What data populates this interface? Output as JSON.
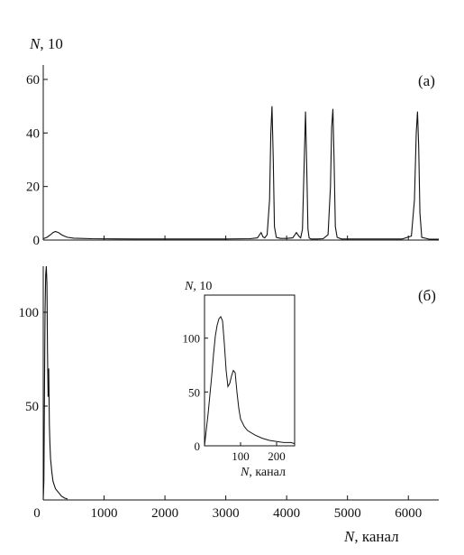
{
  "colors": {
    "ink": "#111111",
    "background": "#ffffff"
  },
  "chart_data": [
    {
      "panel": "a",
      "type": "line",
      "tag": "(а)",
      "ylabel_var": "N",
      "ylabel_rest": ", 10",
      "xlim": [
        0,
        6500
      ],
      "ylim": [
        0,
        65
      ],
      "yticks": [
        0,
        20,
        40,
        60
      ],
      "xticks": [
        0,
        1000,
        2000,
        3000,
        4000,
        5000,
        6000
      ],
      "grid": false,
      "x": [
        0,
        60,
        120,
        160,
        200,
        250,
        300,
        350,
        400,
        500,
        800,
        1500,
        2500,
        3000,
        3400,
        3520,
        3580,
        3610,
        3640,
        3680,
        3720,
        3740,
        3760,
        3780,
        3800,
        3830,
        3900,
        4000,
        4100,
        4160,
        4200,
        4230,
        4260,
        4290,
        4310,
        4330,
        4350,
        4370,
        4400,
        4500,
        4600,
        4680,
        4720,
        4740,
        4760,
        4780,
        4800,
        4830,
        4900,
        5200,
        5600,
        5900,
        6050,
        6100,
        6130,
        6150,
        6170,
        6190,
        6220,
        6350,
        6500
      ],
      "values": [
        0.5,
        1,
        2,
        2.8,
        3.2,
        2.8,
        2.0,
        1.4,
        1.0,
        0.7,
        0.5,
        0.4,
        0.4,
        0.4,
        0.5,
        0.8,
        2.8,
        1.2,
        0.8,
        2,
        15,
        40,
        50,
        30,
        5,
        1,
        0.6,
        0.6,
        0.8,
        2.8,
        1.5,
        0.8,
        4,
        30,
        48,
        28,
        4,
        0.8,
        0.4,
        0.4,
        0.5,
        2,
        20,
        42,
        49,
        30,
        5,
        1,
        0.4,
        0.4,
        0.4,
        0.4,
        1.5,
        15,
        40,
        48,
        35,
        10,
        1,
        0.3,
        0.3
      ]
    },
    {
      "panel": "b",
      "type": "line",
      "tag": "(б)",
      "xlabel_var": "N",
      "xlabel_rest": ", канал",
      "xlim": [
        0,
        6500
      ],
      "ylim": [
        0,
        125
      ],
      "yticks": [
        50,
        100
      ],
      "xticks": [
        0,
        1000,
        2000,
        3000,
        4000,
        5000,
        6000
      ],
      "grid": false,
      "x": [
        0,
        10,
        20,
        30,
        40,
        50,
        60,
        70,
        80,
        90,
        100,
        110,
        120,
        140,
        160,
        200,
        250,
        300,
        350,
        400
      ],
      "values": [
        0,
        10,
        60,
        100,
        120,
        125,
        115,
        80,
        55,
        70,
        40,
        30,
        22,
        15,
        10,
        6,
        4,
        2,
        1,
        0.5
      ]
    },
    {
      "panel": "b-inset",
      "type": "line",
      "ylabel_var": "N",
      "ylabel_rest": ", 10",
      "xlabel_var": "N",
      "xlabel_rest": ", канал",
      "xlim": [
        0,
        250
      ],
      "ylim": [
        0,
        140
      ],
      "yticks": [
        0,
        50,
        100
      ],
      "xticks": [
        100,
        200
      ],
      "grid": false,
      "x": [
        0,
        10,
        20,
        25,
        30,
        35,
        40,
        45,
        50,
        55,
        60,
        65,
        70,
        75,
        80,
        85,
        90,
        95,
        100,
        110,
        120,
        140,
        160,
        180,
        200,
        220,
        240,
        250
      ],
      "values": [
        0,
        30,
        65,
        85,
        102,
        112,
        118,
        120,
        116,
        95,
        70,
        55,
        58,
        65,
        70,
        68,
        50,
        35,
        25,
        18,
        14,
        10,
        7,
        5,
        4,
        3,
        3,
        2
      ]
    }
  ]
}
